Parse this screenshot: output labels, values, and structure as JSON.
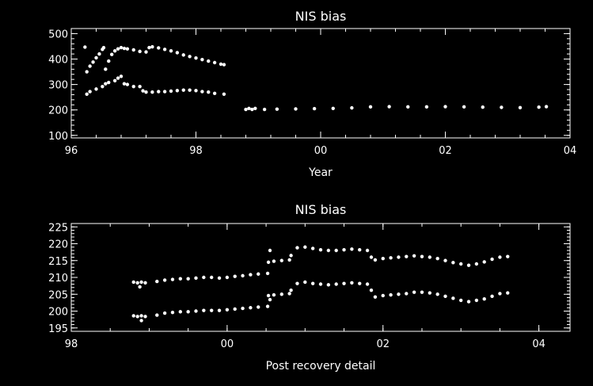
{
  "chart_data": [
    {
      "type": "scatter",
      "title": "NIS bias",
      "xlabel": "Year",
      "ylabel": "",
      "xlim": [
        96,
        104
      ],
      "ylim": [
        90,
        520
      ],
      "x_ticks": [
        96,
        98,
        100,
        102,
        104
      ],
      "x_tick_labels": [
        "96",
        "98",
        "00",
        "02",
        "04"
      ],
      "y_ticks": [
        100,
        200,
        300,
        400,
        500
      ],
      "y_tick_labels": [
        "100",
        "200",
        "300",
        "400",
        "500"
      ],
      "grid": false,
      "series": [
        {
          "points": [
            [
              96.25,
              350
            ],
            [
              96.3,
              372
            ],
            [
              96.35,
              388
            ],
            [
              96.4,
              405
            ],
            [
              96.45,
              420
            ],
            [
              96.5,
              438
            ],
            [
              96.52,
              445
            ],
            [
              96.55,
              360
            ],
            [
              96.6,
              392
            ],
            [
              96.65,
              418
            ],
            [
              96.7,
              432
            ],
            [
              96.75,
              440
            ],
            [
              96.8,
              445
            ],
            [
              96.85,
              442
            ],
            [
              96.9,
              440
            ],
            [
              97.0,
              436
            ],
            [
              97.1,
              430
            ],
            [
              97.2,
              428
            ],
            [
              97.25,
              445
            ],
            [
              97.3,
              448
            ],
            [
              97.4,
              444
            ],
            [
              97.5,
              438
            ],
            [
              97.6,
              432
            ],
            [
              97.7,
              425
            ],
            [
              97.8,
              416
            ],
            [
              97.9,
              410
            ],
            [
              98.0,
              404
            ],
            [
              98.1,
              398
            ],
            [
              98.2,
              392
            ],
            [
              98.3,
              386
            ],
            [
              98.4,
              380
            ],
            [
              98.45,
              378
            ],
            [
              96.22,
              447
            ],
            [
              96.25,
              262
            ],
            [
              96.3,
              272
            ],
            [
              96.4,
              282
            ],
            [
              96.5,
              292
            ],
            [
              96.55,
              303
            ],
            [
              96.6,
              308
            ],
            [
              96.7,
              315
            ],
            [
              96.75,
              325
            ],
            [
              96.8,
              332
            ],
            [
              96.85,
              303
            ],
            [
              96.9,
              300
            ],
            [
              97.0,
              292
            ],
            [
              97.1,
              292
            ],
            [
              97.15,
              275
            ],
            [
              97.2,
              270
            ],
            [
              97.3,
              270
            ],
            [
              97.4,
              272
            ],
            [
              97.5,
              272
            ],
            [
              97.6,
              274
            ],
            [
              97.7,
              276
            ],
            [
              97.8,
              278
            ],
            [
              97.9,
              278
            ],
            [
              98.0,
              276
            ],
            [
              98.1,
              272
            ],
            [
              98.2,
              270
            ],
            [
              98.3,
              265
            ],
            [
              98.45,
              262
            ],
            [
              98.8,
              202
            ],
            [
              98.85,
              206
            ],
            [
              98.9,
              202
            ],
            [
              98.95,
              206
            ],
            [
              99.1,
              202
            ],
            [
              99.3,
              203
            ],
            [
              99.6,
              204
            ],
            [
              99.9,
              205
            ],
            [
              100.2,
              206
            ],
            [
              100.5,
              208
            ],
            [
              100.8,
              212
            ],
            [
              101.1,
              213
            ],
            [
              101.4,
              212
            ],
            [
              101.7,
              212
            ],
            [
              102.0,
              213
            ],
            [
              102.3,
              212
            ],
            [
              102.6,
              211
            ],
            [
              102.9,
              210
            ],
            [
              103.2,
              209
            ],
            [
              103.5,
              211
            ],
            [
              103.62,
              213
            ]
          ]
        }
      ]
    },
    {
      "type": "scatter",
      "title": "NIS bias",
      "xlabel": "Post recovery detail",
      "ylabel": "",
      "xlim": [
        98,
        104.4
      ],
      "ylim": [
        194,
        226
      ],
      "x_ticks": [
        98,
        100,
        102,
        104
      ],
      "x_tick_labels": [
        "98",
        "00",
        "02",
        "04"
      ],
      "y_ticks": [
        195,
        200,
        205,
        210,
        215,
        220,
        225
      ],
      "y_tick_labels": [
        "195",
        "200",
        "205",
        "210",
        "215",
        "220",
        "225"
      ],
      "grid": false,
      "series": [
        {
          "points": [
            [
              98.8,
              208.6
            ],
            [
              98.85,
              208.4
            ],
            [
              98.9,
              208.6
            ],
            [
              98.95,
              208.4
            ],
            [
              98.88,
              207.2
            ],
            [
              99.1,
              208.8
            ],
            [
              99.2,
              209.2
            ],
            [
              99.3,
              209.4
            ],
            [
              99.4,
              209.6
            ],
            [
              99.5,
              209.6
            ],
            [
              99.6,
              209.8
            ],
            [
              99.7,
              210.0
            ],
            [
              99.8,
              210.0
            ],
            [
              99.9,
              209.8
            ],
            [
              100.0,
              210.0
            ],
            [
              100.1,
              210.3
            ],
            [
              100.2,
              210.5
            ],
            [
              100.3,
              210.8
            ],
            [
              100.4,
              211.0
            ],
            [
              100.52,
              211.2
            ],
            [
              100.53,
              214.5
            ],
            [
              100.6,
              214.8
            ],
            [
              100.7,
              215.0
            ],
            [
              100.8,
              215.2
            ],
            [
              100.82,
              216.5
            ],
            [
              100.55,
              218.0
            ],
            [
              100.9,
              218.8
            ],
            [
              101.0,
              219.0
            ],
            [
              101.1,
              218.6
            ],
            [
              101.2,
              218.2
            ],
            [
              101.3,
              218.0
            ],
            [
              101.4,
              218.0
            ],
            [
              101.5,
              218.2
            ],
            [
              101.6,
              218.4
            ],
            [
              101.7,
              218.2
            ],
            [
              101.8,
              218.0
            ],
            [
              101.85,
              216.0
            ],
            [
              101.9,
              215.2
            ],
            [
              102.0,
              215.6
            ],
            [
              102.1,
              215.8
            ],
            [
              102.2,
              216.0
            ],
            [
              102.3,
              216.2
            ],
            [
              102.4,
              216.4
            ],
            [
              102.5,
              216.2
            ],
            [
              102.6,
              216.0
            ],
            [
              102.7,
              215.6
            ],
            [
              102.8,
              215.0
            ],
            [
              102.9,
              214.4
            ],
            [
              103.0,
              214.0
            ],
            [
              103.1,
              213.6
            ],
            [
              103.2,
              214.0
            ],
            [
              103.3,
              214.6
            ],
            [
              103.4,
              215.4
            ],
            [
              103.5,
              216.0
            ],
            [
              103.6,
              216.2
            ],
            [
              98.8,
              198.6
            ],
            [
              98.85,
              198.4
            ],
            [
              98.9,
              198.6
            ],
            [
              98.95,
              198.4
            ],
            [
              98.9,
              197.2
            ],
            [
              99.1,
              198.8
            ],
            [
              99.2,
              199.4
            ],
            [
              99.3,
              199.6
            ],
            [
              99.4,
              199.8
            ],
            [
              99.5,
              199.8
            ],
            [
              99.6,
              200.0
            ],
            [
              99.7,
              200.2
            ],
            [
              99.8,
              200.2
            ],
            [
              99.9,
              200.2
            ],
            [
              100.0,
              200.4
            ],
            [
              100.1,
              200.6
            ],
            [
              100.2,
              200.8
            ],
            [
              100.3,
              201.0
            ],
            [
              100.4,
              201.2
            ],
            [
              100.52,
              201.4
            ],
            [
              100.53,
              204.6
            ],
            [
              100.6,
              204.8
            ],
            [
              100.7,
              205.0
            ],
            [
              100.8,
              205.2
            ],
            [
              100.82,
              206.2
            ],
            [
              100.55,
              203.4
            ],
            [
              100.9,
              208.2
            ],
            [
              101.0,
              208.6
            ],
            [
              101.1,
              208.2
            ],
            [
              101.2,
              208.0
            ],
            [
              101.3,
              207.8
            ],
            [
              101.4,
              208.0
            ],
            [
              101.5,
              208.2
            ],
            [
              101.6,
              208.4
            ],
            [
              101.7,
              208.2
            ],
            [
              101.8,
              208.0
            ],
            [
              101.85,
              206.2
            ],
            [
              101.9,
              204.2
            ],
            [
              102.0,
              204.6
            ],
            [
              102.1,
              204.8
            ],
            [
              102.2,
              205.0
            ],
            [
              102.3,
              205.2
            ],
            [
              102.4,
              205.6
            ],
            [
              102.5,
              205.6
            ],
            [
              102.6,
              205.4
            ],
            [
              102.7,
              205.0
            ],
            [
              102.8,
              204.4
            ],
            [
              102.9,
              203.8
            ],
            [
              103.0,
              203.2
            ],
            [
              103.1,
              202.8
            ],
            [
              103.2,
              203.2
            ],
            [
              103.3,
              203.6
            ],
            [
              103.4,
              204.4
            ],
            [
              103.5,
              205.2
            ],
            [
              103.6,
              205.4
            ]
          ]
        }
      ]
    }
  ]
}
